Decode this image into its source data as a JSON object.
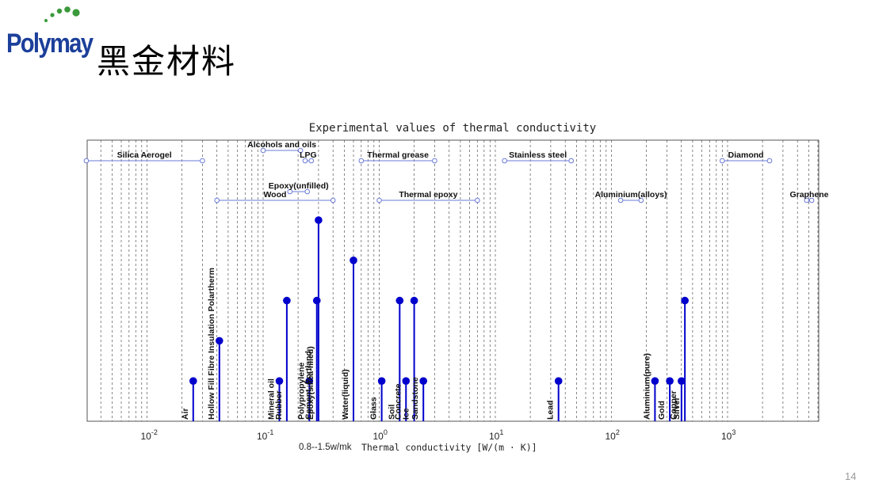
{
  "brand": {
    "name": "Polymay",
    "color": "#1c3f9a",
    "accent": "#3a9a3a"
  },
  "slide": {
    "title": "黑金材料",
    "page_number": "14"
  },
  "chart_data": {
    "type": "scatter",
    "title": "Experimental values of thermal conductivity",
    "xlabel": "Thermal conductivity [W/(m · K)]",
    "x_scale": "log",
    "xlim": [
      0.0025,
      7000
    ],
    "x_ticks": [
      {
        "value": 0.01,
        "base": "10",
        "exp": "-2"
      },
      {
        "value": 0.1,
        "base": "10",
        "exp": "-1"
      },
      {
        "value": 1,
        "base": "10",
        "exp": "0"
      },
      {
        "value": 10,
        "base": "10",
        "exp": "1"
      },
      {
        "value": 100,
        "base": "10",
        "exp": "2"
      },
      {
        "value": 1000,
        "base": "10",
        "exp": "3"
      }
    ],
    "grid": "vertical dashed",
    "annotation": "0.8--1.5w/mk",
    "range_color": "#6b7bd8",
    "stem_color": "#0000cc",
    "ranges": [
      {
        "label": "Silica Aerogel",
        "min": 0.003,
        "max": 0.03,
        "row": 0
      },
      {
        "label": "Alcohols and oils",
        "min": 0.1,
        "max": 0.21,
        "row": -1
      },
      {
        "label": "LPG",
        "min": 0.23,
        "max": 0.26,
        "row": 0
      },
      {
        "label": "Thermal grease",
        "min": 0.7,
        "max": 3.0,
        "row": 0
      },
      {
        "label": "Stainless steel",
        "min": 12,
        "max": 45,
        "row": 0
      },
      {
        "label": "Diamond",
        "min": 900,
        "max": 2300,
        "row": 0
      },
      {
        "label": "Epoxy(unfilled)",
        "min": 0.17,
        "max": 0.24,
        "row": 1
      },
      {
        "label": "Wood",
        "min": 0.04,
        "max": 0.4,
        "row": 2
      },
      {
        "label": "Thermal epoxy",
        "min": 1.0,
        "max": 7.0,
        "row": 2
      },
      {
        "label": "Aluminium(alloys)",
        "min": 120,
        "max": 180,
        "row": 2
      },
      {
        "label": "Graphene",
        "min": 4800,
        "max": 5300,
        "row": 2
      }
    ],
    "points": [
      {
        "label": "Air",
        "x": 0.025,
        "y": 0.1
      },
      {
        "label": "Hollow Fill Fibre Insulation Polartherm",
        "x": 0.042,
        "y": 0.2
      },
      {
        "label": "Mineral oil",
        "x": 0.138,
        "y": 0.1
      },
      {
        "label": "Rubber",
        "x": 0.16,
        "y": 0.3
      },
      {
        "label": "Polypropylene",
        "x": 0.25,
        "y": 0.1
      },
      {
        "label": "Cement, Portland",
        "x": 0.29,
        "y": 0.3
      },
      {
        "label": "Epoxy(silica-filled)",
        "x": 0.3,
        "y": 0.5
      },
      {
        "label": "Water(liquid)",
        "x": 0.6,
        "y": 0.4
      },
      {
        "label": "Glass",
        "x": 1.05,
        "y": 0.1
      },
      {
        "label": "Soil",
        "x": 1.5,
        "y": 0.3
      },
      {
        "label": "Concrete",
        "x": 1.7,
        "y": 0.1
      },
      {
        "label": "Ice",
        "x": 2.0,
        "y": 0.3
      },
      {
        "label": "Sandstone",
        "x": 2.4,
        "y": 0.1
      },
      {
        "label": "Lead",
        "x": 35,
        "y": 0.1
      },
      {
        "label": "Aluminium(pure)",
        "x": 237,
        "y": 0.1
      },
      {
        "label": "Gold",
        "x": 318,
        "y": 0.1
      },
      {
        "label": "Copper",
        "x": 401,
        "y": 0.1
      },
      {
        "label": "Silver",
        "x": 429,
        "y": 0.3
      }
    ]
  }
}
